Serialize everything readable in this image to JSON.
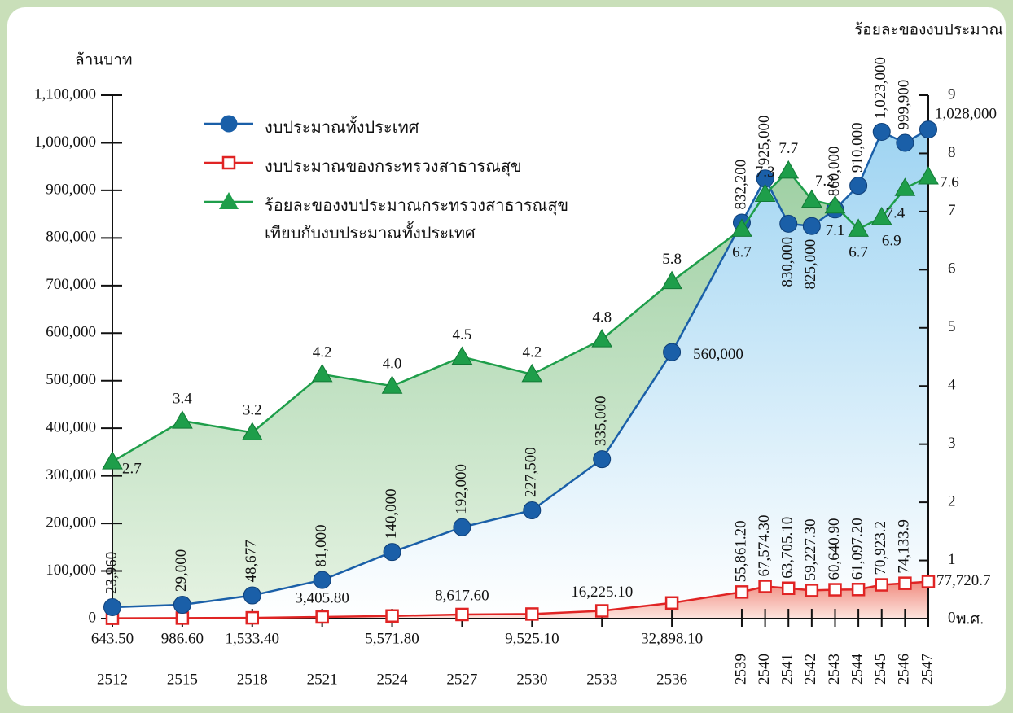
{
  "chart_data": {
    "type": "line",
    "y_axis_label": "ล้านบาท",
    "y2_axis_label": "ร้อยละของงบประมาณ",
    "x_axis_label": "พ.ศ.",
    "x": [
      2512,
      2515,
      2518,
      2521,
      2524,
      2527,
      2530,
      2533,
      2536,
      2539,
      2540,
      2541,
      2542,
      2543,
      2544,
      2545,
      2546,
      2547
    ],
    "xlim": [
      2512,
      2547
    ],
    "ylim": [
      0,
      1100000
    ],
    "yticks": [
      0,
      {
        "value": 100000,
        "label": "100,000"
      },
      {
        "value": 200000,
        "label": "200,000"
      },
      {
        "value": 300000,
        "label": "300,000"
      },
      {
        "value": 400000,
        "label": "400,000"
      },
      {
        "value": 500000,
        "label": "500,000"
      },
      {
        "value": 600000,
        "label": "600,000"
      },
      {
        "value": 700000,
        "label": "700,000"
      },
      {
        "value": 800000,
        "label": "800,000"
      },
      {
        "value": 900000,
        "label": "900,000"
      },
      {
        "value": 1000000,
        "label": "1,000,000"
      },
      {
        "value": 1100000,
        "label": "1,100,000"
      }
    ],
    "y2lim": [
      0,
      9
    ],
    "y2ticks": [
      0,
      1,
      2,
      3,
      4,
      5,
      6,
      7,
      8,
      9
    ],
    "series": [
      {
        "name": "งบประมาณทั้งประเทศ",
        "color": "#1a5fa8",
        "marker": "circle",
        "values": [
          23960,
          29000,
          48677,
          81000,
          140000,
          192000,
          227500,
          335000,
          560000,
          832200,
          925000,
          830000,
          825000,
          860000,
          910000,
          1023000,
          999900,
          1028000
        ],
        "value_labels": [
          "23,960",
          "29,000",
          "48,677",
          "81,000",
          "140,000",
          "192,000",
          "227,500",
          "335,000",
          "560,000",
          "832,200",
          "925,000",
          "830,000",
          "825,000",
          "860,000",
          "910,000",
          "1,023,000",
          "999,900",
          "1,028,000"
        ]
      },
      {
        "name": "งบประมาณของกระทรวงสาธารณสุข",
        "color": "#e02424",
        "marker": "square",
        "values": [
          643.5,
          986.6,
          1533.4,
          3405.8,
          5571.8,
          8617.6,
          9525.1,
          16225.1,
          32898.1,
          55861.2,
          67574.3,
          63705.1,
          59227.3,
          60640.9,
          61097.2,
          70923.2,
          74133.9,
          77720.7
        ],
        "value_labels": [
          "643.50",
          "986.60",
          "1,533.40",
          "3,405.80",
          "5,571.80",
          "8,617.60",
          "9,525.10",
          "16,225.10",
          "32,898.10",
          "55,861.20",
          "67,574.30",
          "63,705.10",
          "59,227.30",
          "60,640.90",
          "61,097.20",
          "70,923.2",
          "74,133.9",
          "77,720.7"
        ]
      },
      {
        "name": "ร้อยละของงบประมาณกระทรวงสาธารณสุข\nเทียบกับงบประมาณทั้งประเทศ",
        "color": "#1e9e4a",
        "marker": "triangle",
        "axis": "y2",
        "values": [
          2.7,
          3.4,
          3.2,
          4.2,
          4.0,
          4.5,
          4.2,
          4.8,
          5.8,
          6.7,
          7.3,
          7.7,
          7.2,
          7.1,
          6.7,
          6.9,
          7.4,
          7.6
        ],
        "value_labels": [
          "2.7",
          "3.4",
          "3.2",
          "4.2",
          "4.0",
          "4.5",
          "4.2",
          "4.8",
          "5.8",
          "6.7",
          "7.3",
          "7.7",
          "7.2",
          "7.1",
          "6.7",
          "6.9",
          "7.4",
          "7.6"
        ]
      }
    ]
  }
}
